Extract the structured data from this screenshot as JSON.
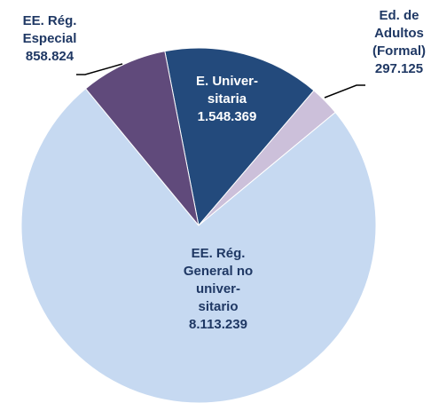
{
  "chart_data": {
    "type": "pie",
    "categories": [
      [
        "E. Univer-",
        "sitaria"
      ],
      [
        "Ed. de",
        "Adultos",
        "(Formal)"
      ],
      [
        "EE. Rég.",
        "General no",
        "univer-",
        "sitario"
      ],
      [
        "EE. Rég.",
        "Especial"
      ]
    ],
    "values": [
      1548369,
      297125,
      8113239,
      858824
    ],
    "value_labels": [
      "1.548.369",
      "297.125",
      "8.113.239",
      "858.824"
    ],
    "colors": [
      "#234a7c",
      "#ccc0da",
      "#c6d9f1",
      "#604a7b"
    ]
  }
}
